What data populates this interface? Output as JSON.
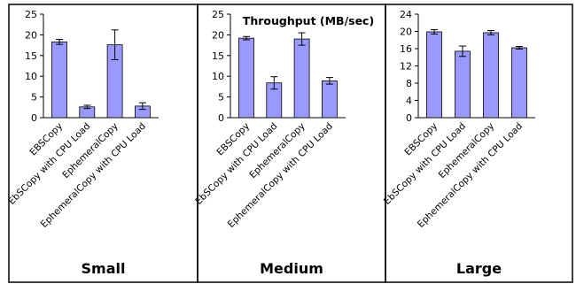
{
  "chart_data": [
    {
      "type": "bar",
      "title": "",
      "xlabel": "Small",
      "ylabel": "",
      "ylim": [
        0,
        25
      ],
      "yticks": [
        0,
        5,
        10,
        15,
        20,
        25
      ],
      "categories": [
        "EBSCopy",
        "EbSCopy with CPU Load",
        "EphemeralCopy",
        "EphemeralCopy with CPU Load"
      ],
      "values": [
        18.3,
        2.6,
        17.6,
        2.8
      ],
      "errors": [
        0.6,
        0.4,
        3.6,
        0.8
      ],
      "bar_color": "#9999ff"
    },
    {
      "type": "bar",
      "title": "Throughput (MB/sec)",
      "xlabel": "Medium",
      "ylabel": "",
      "ylim": [
        0,
        25
      ],
      "yticks": [
        0,
        5,
        10,
        15,
        20,
        25
      ],
      "categories": [
        "EBSCopy",
        "EbSCopy with CPU Load",
        "EphemeralCopy",
        "EphemeralCopy with CPU Load"
      ],
      "values": [
        19.2,
        8.4,
        19.0,
        8.9
      ],
      "errors": [
        0.4,
        1.5,
        1.5,
        0.8
      ],
      "bar_color": "#9999ff"
    },
    {
      "type": "bar",
      "title": "",
      "xlabel": "Large",
      "ylabel": "",
      "ylim": [
        0,
        24
      ],
      "yticks": [
        0,
        4,
        8,
        12,
        16,
        20,
        24
      ],
      "categories": [
        "EBSCopy",
        "EbSCopy with CPU Load",
        "EphemeralCopy",
        "EphemeralCopy with CPU Load"
      ],
      "values": [
        19.9,
        15.4,
        19.7,
        16.2
      ],
      "errors": [
        0.5,
        1.2,
        0.5,
        0.3
      ],
      "bar_color": "#9999ff"
    }
  ]
}
